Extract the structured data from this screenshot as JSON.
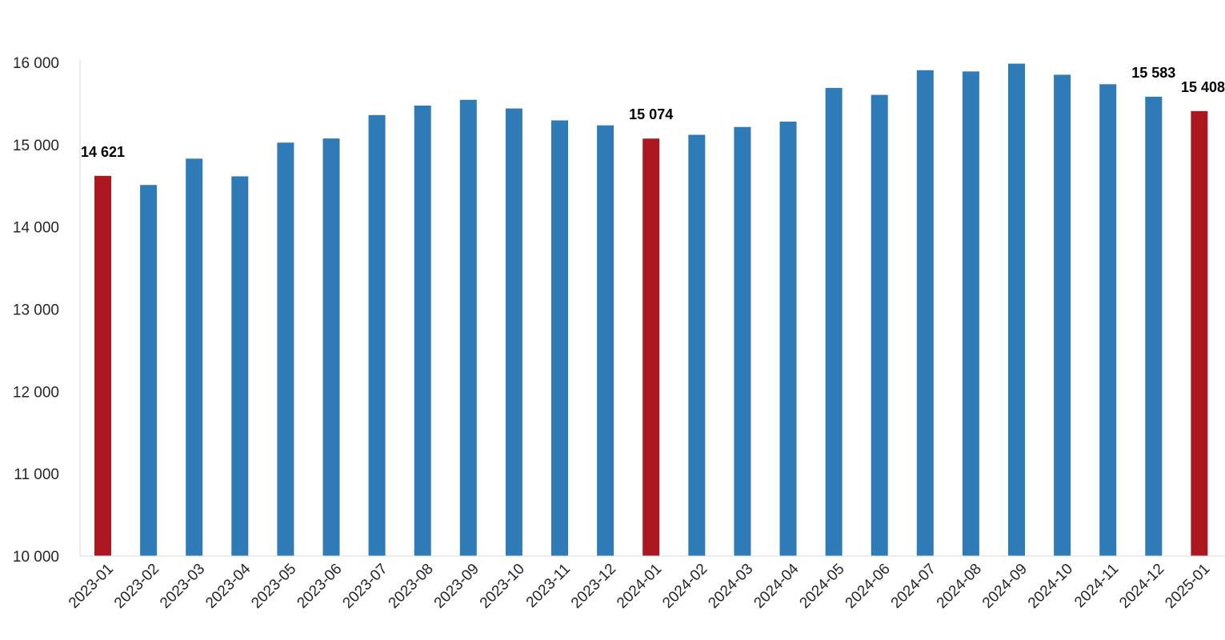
{
  "chart_data": {
    "type": "bar",
    "title": "",
    "xlabel": "",
    "ylabel": "",
    "ylim": [
      10000,
      16000
    ],
    "yticks": [
      10000,
      11000,
      12000,
      13000,
      14000,
      15000,
      16000
    ],
    "grid": false,
    "legend": "none",
    "colors": {
      "default": "#2E7BB8",
      "highlight": "#AC1820"
    },
    "categories": [
      "2023-01",
      "2023-02",
      "2023-03",
      "2023-04",
      "2023-05",
      "2023-06",
      "2023-07",
      "2023-08",
      "2023-09",
      "2023-10",
      "2023-11",
      "2023-12",
      "2024-01",
      "2024-02",
      "2024-03",
      "2024-04",
      "2024-05",
      "2024-06",
      "2024-07",
      "2024-08",
      "2024-09",
      "2024-10",
      "2024-11",
      "2024-12",
      "2025-01"
    ],
    "values": [
      14621,
      14510,
      14830,
      14615,
      15025,
      15075,
      15360,
      15475,
      15545,
      15440,
      15295,
      15235,
      15074,
      15120,
      15215,
      15280,
      15690,
      15605,
      15905,
      15890,
      15985,
      15850,
      15735,
      15583,
      15408
    ],
    "highlighted": [
      0,
      12,
      24
    ],
    "data_labels": [
      {
        "index": 0,
        "text": "14 621"
      },
      {
        "index": 12,
        "text": "15 074"
      },
      {
        "index": 23,
        "text": "15 583"
      },
      {
        "index": 24,
        "text": "15 408"
      }
    ]
  }
}
